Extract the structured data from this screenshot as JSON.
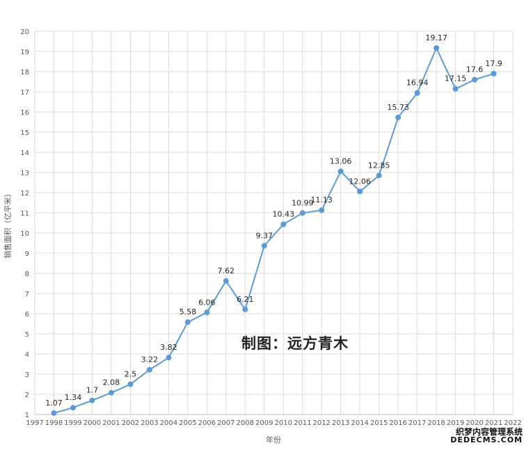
{
  "chart_data": {
    "type": "line",
    "title": "",
    "xlabel": "年份",
    "ylabel": "销售面积（亿平米）",
    "x_ticks": [
      "1997",
      "1998",
      "1999",
      "2000",
      "2001",
      "2002",
      "2003",
      "2004",
      "2005",
      "2006",
      "2007",
      "2008",
      "2009",
      "2010",
      "2011",
      "2012",
      "2013",
      "2014",
      "2015",
      "2016",
      "2017",
      "2018",
      "2019",
      "2020",
      "2021",
      "2022"
    ],
    "xlim": [
      1997,
      2022
    ],
    "y_ticks": [
      1,
      2,
      3,
      4,
      5,
      6,
      7,
      8,
      9,
      10,
      11,
      12,
      13,
      14,
      15,
      16,
      17,
      18,
      19,
      20
    ],
    "ylim": [
      1,
      20
    ],
    "grid": true,
    "legend": "none",
    "series": [
      {
        "color": "#5b9bd5",
        "x": [
          1998,
          1999,
          2000,
          2001,
          2002,
          2003,
          2004,
          2005,
          2006,
          2007,
          2008,
          2009,
          2010,
          2011,
          2012,
          2013,
          2014,
          2015,
          2016,
          2017,
          2018,
          2019,
          2020,
          2021
        ],
        "values": [
          1.07,
          1.34,
          1.7,
          2.08,
          2.5,
          3.22,
          3.82,
          5.58,
          6.06,
          7.62,
          6.21,
          9.37,
          10.43,
          10.99,
          11.13,
          13.06,
          12.06,
          12.85,
          15.73,
          16.94,
          19.17,
          17.15,
          17.6,
          17.9
        ],
        "labels": [
          "1.07",
          "1.34",
          "1.7",
          "2.08",
          "2.5",
          "3.22",
          "3.82",
          "5.58",
          "6.06",
          "7.62",
          "6.21",
          "9.37",
          "10.43",
          "10.99",
          "11.13",
          "13.06",
          "12.06",
          "12.85",
          "15.73",
          "16.94",
          "19.17",
          "17.15",
          "17.6",
          "17.9"
        ]
      }
    ]
  },
  "watermark": {
    "text": "制图：远方青木"
  },
  "corner_stamp": {
    "line1": "织梦内容管理系统",
    "line2": "DEDECMS.COM"
  }
}
